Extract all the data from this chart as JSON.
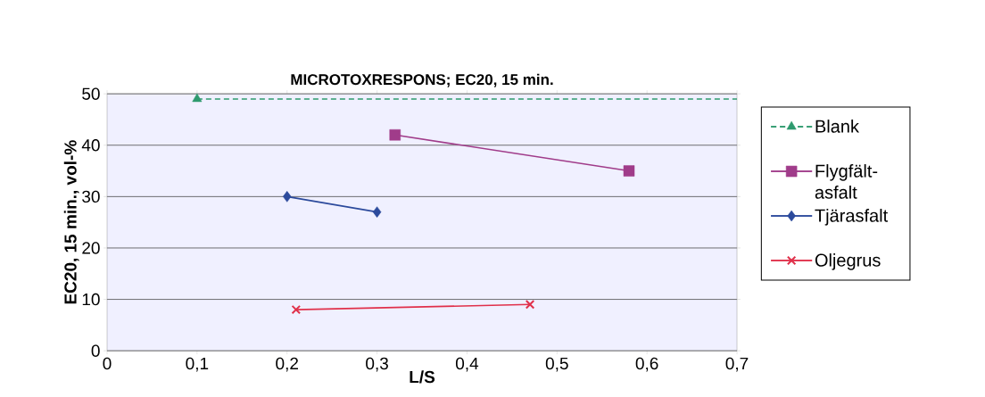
{
  "chart_data": {
    "type": "line",
    "title": "MICROTOXRESPONS; EC20, 15 min.",
    "xlabel": "L/S",
    "ylabel": "EC20, 15 min., vol-%",
    "series": [
      {
        "name": "Blank",
        "color": "#2e9a6e",
        "x": [
          0.1,
          0.7
        ],
        "values": [
          49,
          49
        ],
        "marker": "triangle",
        "line_style": "dashed"
      },
      {
        "name": "Flygfält-asfalt",
        "color": "#a03c8a",
        "x": [
          0.32,
          0.58
        ],
        "values": [
          42,
          35
        ],
        "marker": "square"
      },
      {
        "name": "Tjärasfalt",
        "color": "#2c4a9c",
        "x": [
          0.2,
          0.3
        ],
        "values": [
          30,
          27
        ],
        "marker": "diamond"
      },
      {
        "name": "Oljegrus",
        "color": "#e0304a",
        "x": [
          0.21,
          0.47
        ],
        "values": [
          8,
          9
        ],
        "marker": "cross"
      }
    ],
    "xlim": [
      0,
      0.7
    ],
    "xticks": [
      0,
      {
        "value": 0.1,
        "label": "0,1"
      },
      {
        "value": 0.2,
        "label": "0,2"
      },
      {
        "value": 0.3,
        "label": "0,3"
      },
      {
        "value": 0.4,
        "label": "0,4"
      },
      {
        "value": 0.5,
        "label": "0,5"
      },
      {
        "value": 0.6,
        "label": "0,6"
      },
      {
        "value": 0.7,
        "label": "0,7"
      }
    ],
    "ylim": [
      0,
      50
    ],
    "yticks": [
      0,
      10,
      20,
      30,
      40,
      50
    ],
    "grid": "y",
    "legend": "right"
  }
}
